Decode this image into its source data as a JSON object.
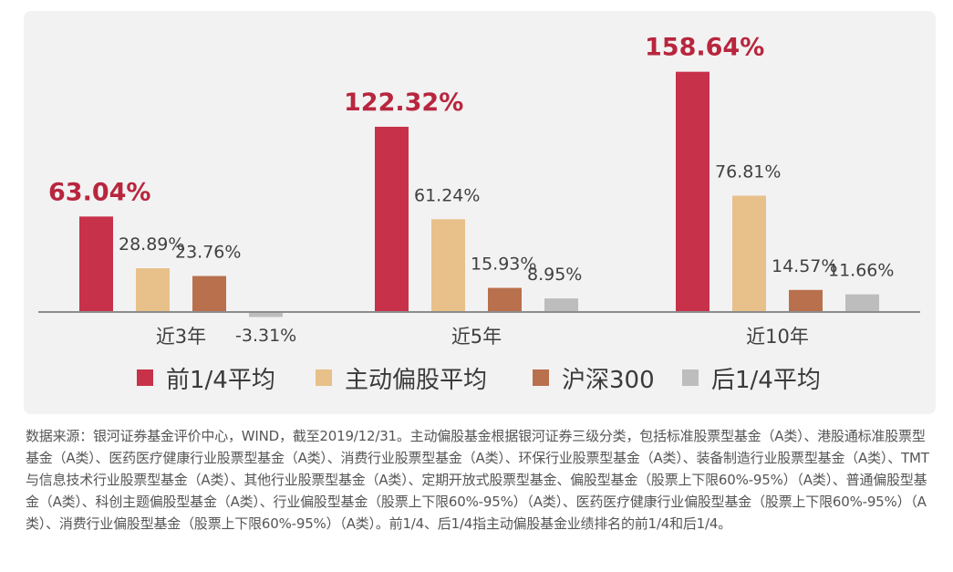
{
  "chart_data": {
    "type": "bar",
    "categories": [
      "近3年",
      "近5年",
      "近10年"
    ],
    "series": [
      {
        "name": "前1/4平均",
        "values": [
          63.04,
          122.32,
          158.64
        ],
        "labels": [
          "63.04%",
          "122.32%",
          "158.64%"
        ],
        "color": "#c8314a"
      },
      {
        "name": "主动偏股平均",
        "values": [
          28.89,
          61.24,
          76.81
        ],
        "labels": [
          "28.89%",
          "61.24%",
          "76.81%"
        ],
        "color": "#e8c08a"
      },
      {
        "name": "沪深300",
        "values": [
          23.76,
          15.93,
          14.57
        ],
        "labels": [
          "23.76%",
          "15.93%",
          "14.57%"
        ],
        "color": "#b9704d"
      },
      {
        "name": "后1/4平均",
        "values": [
          -3.31,
          8.95,
          11.66
        ],
        "labels": [
          "-3.31%",
          "8.95%",
          "11.66%"
        ],
        "color": "#bdbdbd"
      }
    ],
    "highlight_color": "#b8263e",
    "label_color": "#404040",
    "axis_color": "#8c8c8c",
    "ylim": [
      -5,
      175
    ],
    "grid": false,
    "legend_position": "bottom"
  },
  "footnote": "数据来源：银河证券基金评价中心，WIND，截至2019/12/31。主动偏股基金根据银河证券三级分类，包括标准股票型基金（A类）、港股通标准股票型基金（A类）、医药医疗健康行业股票型基金（A类）、消费行业股票型基金（A类）、环保行业股票型基金（A类）、装备制造行业股票型基金（A类）、TMT与信息技术行业股票型基金（A类）、其他行业股票型基金（A类）、定期开放式股票型基金、偏股型基金（股票上下限60%-95%）（A类）、普通偏股型基金（A类）、科创主题偏股型基金（A类）、行业偏股型基金（股票上下限60%-95%）（A类）、医药医疗健康行业偏股型基金（股票上下限60%-95%）（A类）、消费行业偏股型基金（股票上下限60%-95%）（A类）。前1/4、后1/4指主动偏股基金业绩排名的前1/4和后1/4。"
}
